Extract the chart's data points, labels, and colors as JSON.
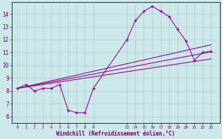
{
  "bg_color": "#cce8e8",
  "line_color": "#990099",
  "grid_color": "#aacccc",
  "axis_color": "#660066",
  "xlabel": "Windchill (Refroidissement éolien,°C)",
  "x_tick_labels": [
    "0",
    "1",
    "2",
    "3",
    "4",
    "5",
    "6",
    "7",
    "8",
    "9",
    "1314151617181920212223"
  ],
  "xlim": [
    -0.7,
    24.0
  ],
  "ylim": [
    5.5,
    14.9
  ],
  "y_ticks": [
    6,
    7,
    8,
    9,
    10,
    11,
    12,
    13,
    14
  ],
  "data_line_x": [
    0,
    1,
    2,
    3,
    4,
    5,
    6,
    7,
    8,
    9,
    13,
    14,
    15,
    16,
    17,
    18,
    19,
    20,
    21,
    22,
    23
  ],
  "data_line_y": [
    8.2,
    8.5,
    8.0,
    8.2,
    8.2,
    8.5,
    6.5,
    6.3,
    6.3,
    8.2,
    12.0,
    13.5,
    14.2,
    14.6,
    14.2,
    13.8,
    12.8,
    11.9,
    10.4,
    11.0,
    11.1
  ],
  "reg_lines": [
    {
      "x": [
        0,
        23
      ],
      "y": [
        8.2,
        11.05
      ]
    },
    {
      "x": [
        0,
        23
      ],
      "y": [
        8.2,
        11.6
      ]
    },
    {
      "x": [
        0,
        23
      ],
      "y": [
        8.2,
        10.5
      ]
    }
  ],
  "left_ticks": [
    0,
    1,
    2,
    3,
    4,
    5,
    6,
    7,
    8,
    9
  ],
  "right_tick_start": 13,
  "right_tick_end": 23,
  "right_ticks_label": "1314151617181920212223"
}
